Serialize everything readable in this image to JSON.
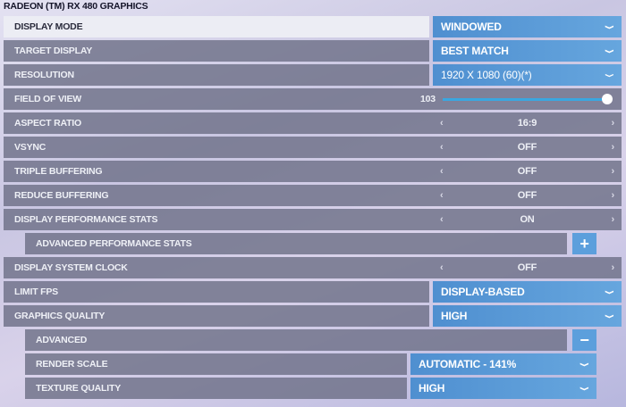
{
  "title": "RADEON (TM) RX 480 GRAPHICS",
  "rows": {
    "display_mode": {
      "label": "DISPLAY MODE",
      "value": "WINDOWED"
    },
    "target_display": {
      "label": "TARGET DISPLAY",
      "value": "BEST MATCH"
    },
    "resolution": {
      "label": "RESOLUTION",
      "value": "1920 X 1080 (60)(*)"
    },
    "fov": {
      "label": "FIELD OF VIEW",
      "value": "103",
      "slider_fraction": 1.0
    },
    "aspect": {
      "label": "ASPECT RATIO",
      "value": "16:9"
    },
    "vsync": {
      "label": "VSYNC",
      "value": "OFF"
    },
    "triple": {
      "label": "TRIPLE BUFFERING",
      "value": "OFF"
    },
    "reduce": {
      "label": "REDUCE BUFFERING",
      "value": "OFF"
    },
    "dps": {
      "label": "DISPLAY PERFORMANCE STATS",
      "value": "ON"
    },
    "adv_perf": {
      "label": "ADVANCED PERFORMANCE STATS",
      "button": "+"
    },
    "clock": {
      "label": "DISPLAY SYSTEM CLOCK",
      "value": "OFF"
    },
    "limit_fps": {
      "label": "LIMIT FPS",
      "value": "DISPLAY-BASED"
    },
    "gq": {
      "label": "GRAPHICS QUALITY",
      "value": "HIGH"
    },
    "advanced": {
      "label": "ADVANCED",
      "button": "−"
    },
    "render_scale": {
      "label": "RENDER SCALE",
      "value": "AUTOMATIC - 141%"
    },
    "texture": {
      "label": "TEXTURE QUALITY",
      "value": "HIGH"
    }
  },
  "glyphs": {
    "left": "‹",
    "right": "›",
    "chevron": "⌄"
  },
  "colors": {
    "accent": "#5c9fdc",
    "slider": "#3aa7e0"
  }
}
